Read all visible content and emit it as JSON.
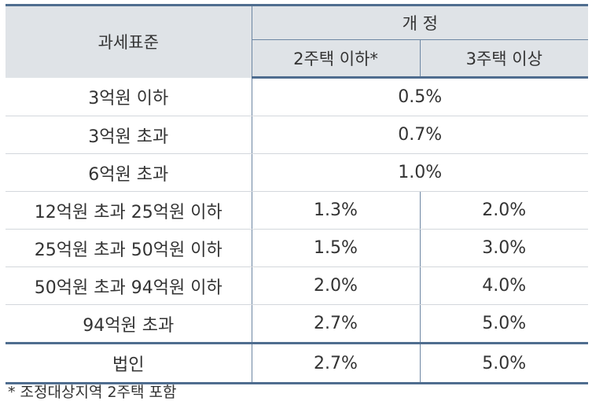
{
  "table": {
    "header": {
      "base_label": "과세표준",
      "group_label": "개 정",
      "sub_labels": [
        "2주택 이하*",
        "3주택 이상"
      ]
    },
    "rows": [
      {
        "label": "3억원 이하",
        "merged": "0.5%"
      },
      {
        "label": "3억원 초과",
        "merged": "0.7%"
      },
      {
        "label": "6억원 초과",
        "merged": "1.0%"
      },
      {
        "label": "12억원 초과 25억원 이하",
        "values": [
          "1.3%",
          "2.0%"
        ]
      },
      {
        "label": "25억원 초과 50억원 이하",
        "values": [
          "1.5%",
          "3.0%"
        ]
      },
      {
        "label": "50억원 초과 94억원 이하",
        "values": [
          "2.0%",
          "4.0%"
        ]
      },
      {
        "label": "94억원 초과",
        "values": [
          "2.7%",
          "5.0%"
        ]
      },
      {
        "label": "법인",
        "values": [
          "2.7%",
          "5.0%"
        ]
      }
    ]
  },
  "footnote": "* 조정대상지역 2주택 포함",
  "colors": {
    "header_bg": "#dfe3e7",
    "rule_dark": "#4f6d8f",
    "rule_light": "#d3d7dc",
    "text": "#333333"
  }
}
